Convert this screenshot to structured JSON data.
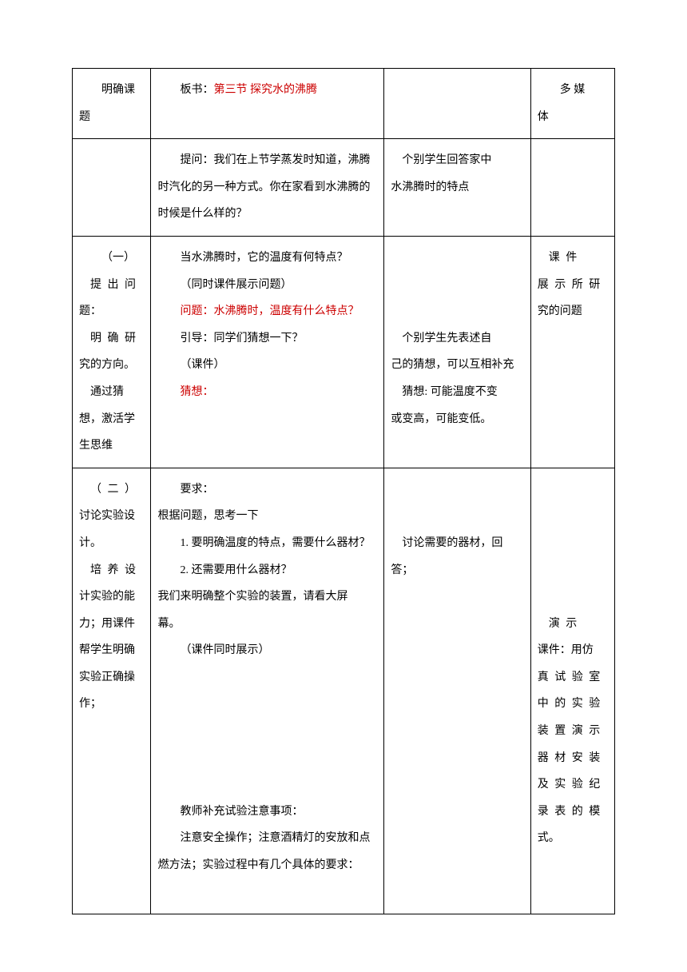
{
  "table": {
    "row1": {
      "col1": {
        "line1": "明确课",
        "line2": "题"
      },
      "col2": {
        "prefix": "板书：",
        "red_text": "第三节 探究水的沸腾"
      },
      "col3": "",
      "col4": {
        "line1": "多 媒",
        "line2": "体"
      }
    },
    "row2": {
      "col1": "",
      "col2": {
        "p1": "提问：我们在上节学蒸发时知道，沸腾时汽化的另一种方式。你在家看到水沸腾的时候是什么样的？",
        "p1_indent": "提问：我们在上节学蒸发时知道，沸腾",
        "p1_cont": "时汽化的另一种方式。你在家看到水沸腾的",
        "p1_end": "时候是什么样的？"
      },
      "col3": {
        "line1": "个别学生回答家中",
        "line2": "水沸腾时的特点"
      },
      "col4": ""
    },
    "row3": {
      "col1": {
        "line1": "（一）",
        "line2": "提 出 问",
        "line3": "题：",
        "line4": "明 确 研",
        "line5": "究的方向。",
        "line6": "通过猜",
        "line7": "想，激活学",
        "line8": "生思维"
      },
      "col2": {
        "line1": "当水沸腾时，它的温度有何特点？",
        "line2": "（同时课件展示问题）",
        "line3_red": "问题：水沸腾时，温度有什么特点？",
        "line4": "引导：同学们猜想一下？",
        "line5": "（课件）",
        "line6_red": "猜想："
      },
      "col3": {
        "line1": "个别学生先表述自",
        "line2": "己的猜想，可以互相补充",
        "line3": "猜想: 可能温度不变",
        "line4": "或变高，可能变低。"
      },
      "col4": {
        "line1": "课 件",
        "line2": "展 示 所 研",
        "line3": "究的问题"
      }
    },
    "row4": {
      "col1": {
        "line1": "（ 二 ）",
        "line2": "讨论实验设",
        "line3": "计。",
        "line4": "培 养 设",
        "line5": "计实验的能",
        "line6": "力；用课件",
        "line7": "帮学生明确",
        "line8": "实验正确操",
        "line9": "作；"
      },
      "col2": {
        "line1": "要求：",
        "line2": "根据问题，思考一下",
        "line3": "1. 要明确温度的特点，需要什么器材？",
        "line4": "2. 还需要用什么器材？",
        "line5": "我们来明确整个实验的装置，请看大屏",
        "line6": "幕。",
        "line7": "（课件同时展示）",
        "gap": " ",
        "line8": "教师补充试验注意事项：",
        "line9": "注意安全操作；注意酒精灯的安放和点",
        "line10": "燃方法；实验过程中有几个具体的要求："
      },
      "col3": {
        "line1": "讨论需要的器材，回",
        "line2": "答；"
      },
      "col4": {
        "line1": "演 示",
        "line2": "课件：用仿",
        "line3": "真 试 验 室",
        "line4": "中 的 实 验",
        "line5": "装 置 演 示",
        "line6": "器 材 安 装",
        "line7": "及 实 验 纪",
        "line8": "录 表 的 模",
        "line9": "式。"
      }
    }
  },
  "colors": {
    "text": "#000000",
    "red": "#cc0000",
    "border": "#000000",
    "background": "#ffffff"
  }
}
